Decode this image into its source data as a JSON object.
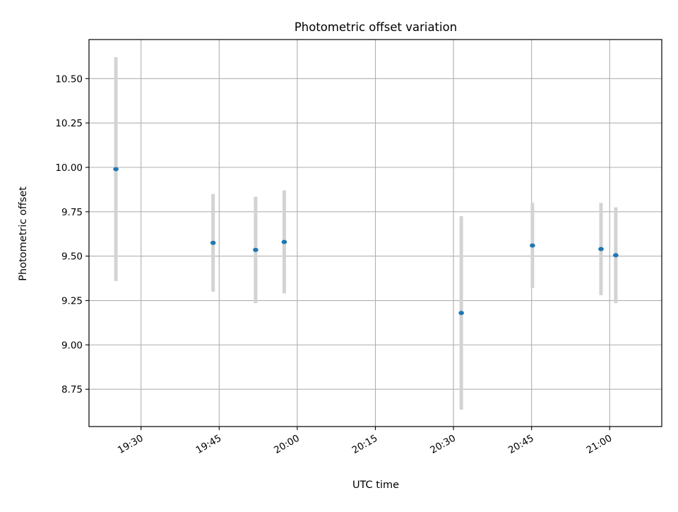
{
  "chart_data": {
    "type": "scatter",
    "title": "Photometric offset variation",
    "xlabel": "UTC time",
    "ylabel": "Photometric offset",
    "xlim": [
      "19:20",
      "21:10"
    ],
    "ylim": [
      8.54,
      10.72
    ],
    "x_ticks": [
      "19:30",
      "19:45",
      "20:00",
      "20:15",
      "20:30",
      "20:45",
      "21:00"
    ],
    "y_ticks": [
      "8.75",
      "9.00",
      "9.25",
      "9.50",
      "9.75",
      "10.00",
      "10.25",
      "10.50"
    ],
    "grid": true,
    "legend": "none",
    "colors": {
      "marker": "#1f77b4",
      "errorbar": "#d3d3d3",
      "grid": "#b0b0b0"
    },
    "series": [
      {
        "x": [
          "19:25:10",
          "19:43:50",
          "19:52:00",
          "19:57:30",
          "20:31:30",
          "20:45:10",
          "20:58:20",
          "21:01:10"
        ],
        "y": [
          9.99,
          9.575,
          9.535,
          9.58,
          9.18,
          9.56,
          9.54,
          9.505
        ],
        "yerr": [
          0.63,
          0.275,
          0.3,
          0.29,
          0.545,
          0.24,
          0.26,
          0.27
        ]
      }
    ]
  }
}
